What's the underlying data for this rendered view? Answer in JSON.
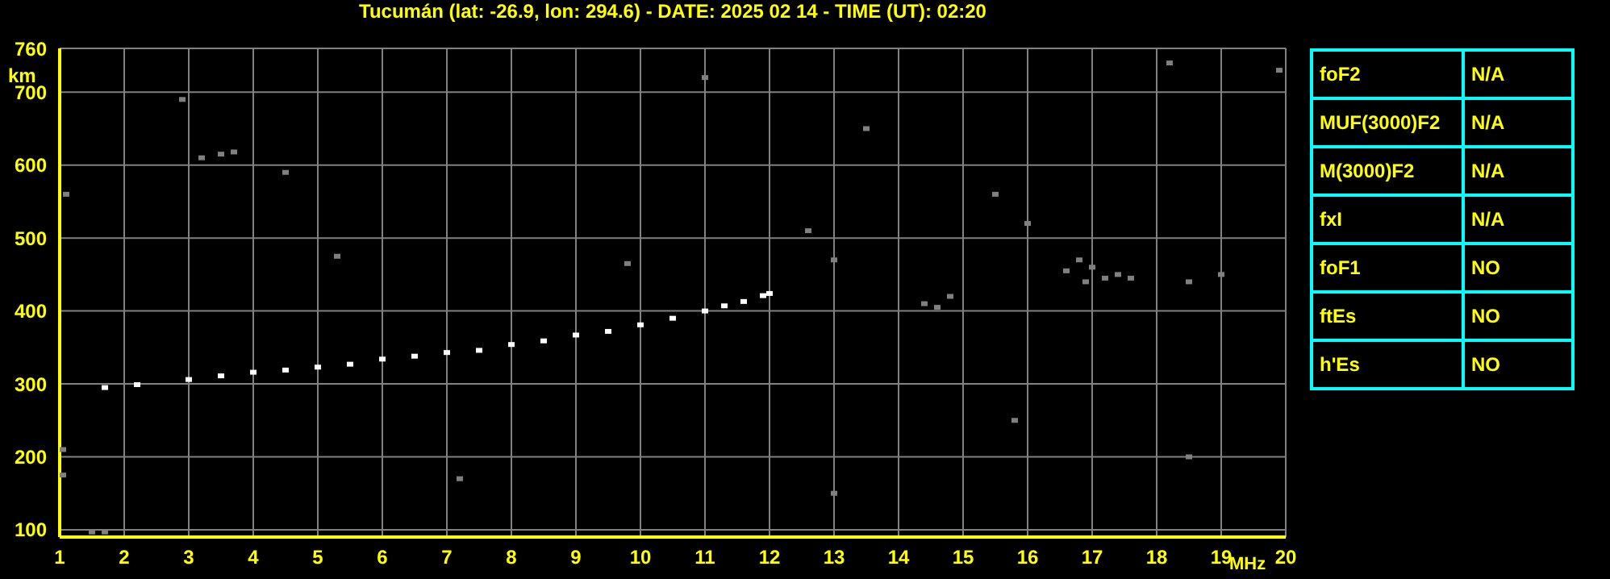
{
  "chart_data": {
    "type": "scatter",
    "title": "Tucumán (lat: -26.9, lon: 294.6) - DATE: 2025 02 14 - TIME (UT): 02:20",
    "xlabel": "MHz",
    "ylabel": "km",
    "xlim": [
      1,
      20
    ],
    "xticks": [
      1,
      2,
      3,
      4,
      5,
      6,
      7,
      8,
      9,
      10,
      11,
      12,
      13,
      14,
      15,
      16,
      17,
      18,
      19,
      20
    ],
    "ylim": [
      90,
      760
    ],
    "yticks": [
      100,
      200,
      300,
      400,
      500,
      600,
      700,
      760
    ],
    "grid": true,
    "marker": "square",
    "series": [
      {
        "color": "#ffffff",
        "x": [
          1.7,
          2.2,
          3,
          3.5,
          4,
          4.5,
          5,
          5.5,
          6,
          6.5,
          7,
          7.5,
          8,
          8.5,
          9,
          9.5,
          10,
          10.5,
          11,
          11.3,
          11.6,
          11.9,
          12
        ],
        "values": [
          295,
          299,
          306,
          311,
          316,
          319,
          323,
          327,
          334,
          338,
          343,
          346,
          354,
          359,
          367,
          372,
          381,
          390,
          400,
          407,
          413,
          421,
          424
        ]
      },
      {
        "color": "#808080",
        "x": [
          3.2,
          3.5,
          3.7,
          14.4,
          14.6,
          14.8,
          16.6,
          16.8,
          17,
          17.2,
          17.4,
          16.9,
          17.6,
          18.5,
          19,
          1.5,
          1.7,
          1.05,
          1.05,
          1.1,
          13,
          12.6,
          15.5,
          16,
          13.5,
          19.9,
          18.2,
          5.3,
          9.8,
          2.9,
          11,
          7.2,
          15.8,
          13,
          18.5,
          4.5
        ],
        "values": [
          610,
          615,
          618,
          410,
          405,
          420,
          455,
          470,
          460,
          445,
          450,
          440,
          445,
          440,
          450,
          97,
          97,
          210,
          175,
          560,
          470,
          510,
          560,
          520,
          650,
          730,
          740,
          475,
          465,
          690,
          720,
          170,
          250,
          150,
          200,
          590
        ]
      }
    ],
    "annotations": [
      "foF2",
      "N/A",
      "MUF(3000)F2",
      "N/A",
      "M(3000)F2",
      "N/A",
      "fxI",
      "N/A",
      "foF1",
      "NO",
      "ftEs",
      "NO",
      "h'Es",
      "NO"
    ]
  }
}
